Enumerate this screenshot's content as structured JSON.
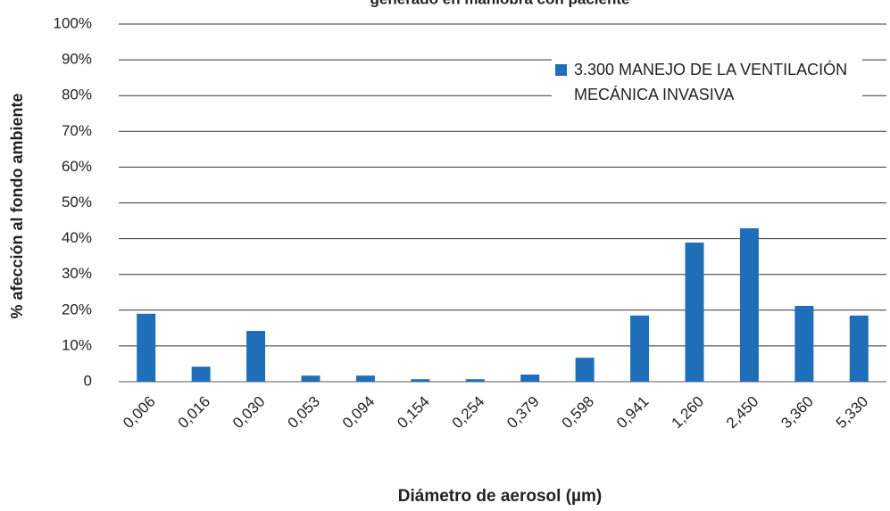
{
  "chart_data": {
    "type": "bar",
    "title": "generado en maniobra con paciente",
    "x_label": "Diámetro de aerosol (µm)",
    "y_label": "% afección al fondo ambiente",
    "categories": [
      "0,006",
      "0,016",
      "0,030",
      "0,053",
      "0,094",
      "0,154",
      "0,254",
      "0,379",
      "0,598",
      "0,941",
      "1,260",
      "2,450",
      "3,360",
      "5,330"
    ],
    "series": [
      {
        "name": "3.300 MANEJO DE LA VENTILACIÓN MECÁNICA INVASIVA",
        "color": "#1f6fb8",
        "values": [
          19,
          4.2,
          14.2,
          1.7,
          1.7,
          0.7,
          0.7,
          2,
          6.7,
          18.5,
          38.9,
          42.9,
          21.2,
          18.5
        ]
      }
    ],
    "ylim": [
      0,
      100
    ],
    "yticks": [
      0,
      {
        "value": 10,
        "label": "10%"
      },
      {
        "value": 20,
        "label": "20%"
      },
      {
        "value": 30,
        "label": "30%"
      },
      {
        "value": 40,
        "label": "40%"
      },
      {
        "value": 50,
        "label": "50%"
      },
      {
        "value": 60,
        "label": "60%"
      },
      {
        "value": 70,
        "label": "70%"
      },
      {
        "value": 80,
        "label": "80%"
      },
      {
        "value": 90,
        "label": "90%"
      },
      {
        "value": 100,
        "label": "100%"
      }
    ],
    "grid": true
  }
}
